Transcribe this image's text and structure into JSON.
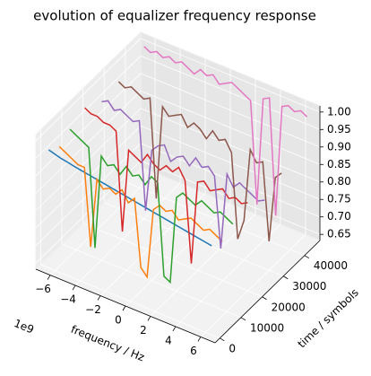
{
  "chart_data": {
    "type": "line3d",
    "title": "evolution of equalizer frequency response",
    "x_label": "frequency / Hz",
    "y_label": "time / symbols",
    "x_offset_label": "1e9",
    "x": [
      -6.5,
      -6,
      -5.5,
      -5,
      -4.5,
      -4,
      -3.5,
      -3,
      -2.5,
      -2,
      -1.5,
      -1,
      -0.5,
      0,
      0.5,
      1,
      1.5,
      2,
      2.5,
      3,
      3.5,
      4,
      4.5,
      5,
      5.5,
      6,
      6.5
    ],
    "xlim": [
      -7.15,
      7.15
    ],
    "xticks": [
      {
        "value": -6,
        "label": "−6"
      },
      {
        "value": -4,
        "label": "−4"
      },
      {
        "value": -2,
        "label": "−2"
      },
      0,
      2,
      4,
      6
    ],
    "ylim": [
      -2250,
      47250
    ],
    "yticks": [
      0,
      10000,
      20000,
      30000,
      40000
    ],
    "zlim": [
      0.6325,
      1.0175
    ],
    "zticks": [
      {
        "value": 0.65,
        "label": "0.65"
      },
      {
        "value": 0.7,
        "label": "0.70"
      },
      {
        "value": 0.75,
        "label": "0.75"
      },
      {
        "value": 0.8,
        "label": "0.80"
      },
      {
        "value": 0.85,
        "label": "0.85"
      },
      {
        "value": 0.9,
        "label": "0.90"
      },
      {
        "value": 0.95,
        "label": "0.95"
      },
      {
        "value": 1.0,
        "label": "1.00"
      }
    ],
    "grid": true,
    "series": [
      {
        "color": "#1f77b4",
        "time": 0,
        "values": [
          0.97,
          0.965,
          0.96,
          0.957,
          0.953,
          0.95,
          0.947,
          0.944,
          0.941,
          0.938,
          0.935,
          0.932,
          0.929,
          0.926,
          0.923,
          0.92,
          0.917,
          0.914,
          0.911,
          0.908,
          0.905,
          0.902,
          0.899,
          0.896,
          0.893,
          0.89,
          0.887
        ]
      },
      {
        "color": "#ff7f0e",
        "time": 5000,
        "values": [
          0.95,
          0.94,
          0.93,
          0.92,
          0.92,
          0.7,
          0.9,
          0.88,
          0.89,
          0.88,
          0.9,
          0.87,
          0.89,
          0.7,
          0.68,
          0.88,
          0.9,
          0.89,
          0.9,
          0.88,
          0.89,
          0.9,
          0.89,
          0.88,
          0.89,
          0.88,
          0.87
        ]
      },
      {
        "color": "#2ca02c",
        "time": 10000,
        "values": [
          0.97,
          0.96,
          0.95,
          0.94,
          0.66,
          0.93,
          0.91,
          0.92,
          0.9,
          0.93,
          0.91,
          0.92,
          0.9,
          0.93,
          0.92,
          0.66,
          0.65,
          0.9,
          0.92,
          0.91,
          0.9,
          0.92,
          0.91,
          0.9,
          0.91,
          0.9,
          0.89
        ]
      },
      {
        "color": "#d62728",
        "time": 17000,
        "values": [
          0.99,
          0.98,
          0.98,
          0.97,
          0.97,
          0.96,
          0.68,
          0.92,
          0.91,
          0.9,
          0.93,
          0.91,
          0.9,
          0.92,
          0.91,
          0.93,
          0.9,
          0.67,
          0.91,
          0.92,
          0.9,
          0.91,
          0.92,
          0.9,
          0.91,
          0.9,
          0.91
        ]
      },
      {
        "color": "#9467bd",
        "time": 25000,
        "values": [
          0.96,
          0.97,
          0.95,
          0.96,
          0.95,
          0.94,
          0.95,
          0.7,
          0.88,
          0.9,
          0.91,
          0.87,
          0.89,
          0.9,
          0.88,
          0.91,
          0.89,
          0.9,
          0.88,
          0.68,
          0.9,
          0.87,
          0.89,
          0.88,
          0.87,
          0.86,
          0.87
        ]
      },
      {
        "color": "#8c564b",
        "time": 33000,
        "values": [
          0.97,
          0.96,
          0.97,
          0.96,
          0.95,
          0.96,
          0.68,
          0.95,
          0.93,
          0.94,
          0.95,
          0.92,
          0.94,
          0.93,
          0.91,
          0.94,
          0.92,
          0.93,
          0.9,
          0.66,
          0.72,
          0.93,
          0.9,
          0.91,
          0.69,
          0.88,
          0.9
        ]
      },
      {
        "color": "#e377c2",
        "time": 45000,
        "values": [
          1.0,
          0.99,
          1.0,
          0.99,
          1.0,
          0.99,
          1.0,
          0.99,
          0.98,
          1.0,
          0.99,
          1.0,
          0.98,
          0.99,
          1.0,
          0.99,
          0.98,
          0.97,
          0.68,
          0.99,
          1.0,
          0.67,
          0.99,
          1.0,
          0.99,
          1.0,
          0.99
        ]
      }
    ]
  }
}
